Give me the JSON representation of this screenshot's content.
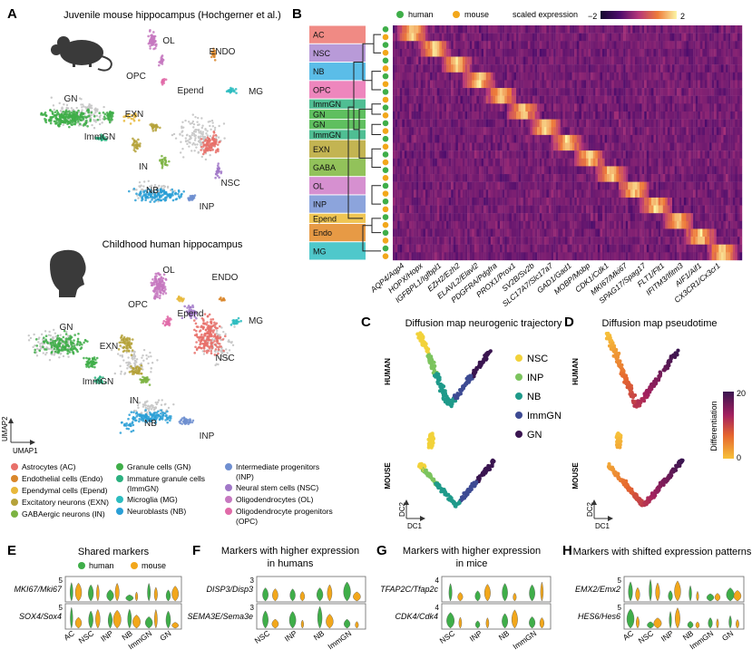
{
  "panels": {
    "A": {
      "label": "A",
      "title_mouse": "Juvenile mouse hippocampus (Hochgerner et al.)",
      "title_human": "Childhood human hippocampus",
      "axis_x": "UMAP1",
      "axis_y": "UMAP2",
      "mouse_cluster_labels": [
        "OL",
        "ENDO",
        "OPC",
        "Epend",
        "MG",
        "GN",
        "EXN",
        "ImmGN",
        "IN",
        "NSC",
        "NB",
        "INP"
      ],
      "human_cluster_labels": [
        "OL",
        "ENDO",
        "OPC",
        "Epend",
        "MG",
        "GN",
        "EXN",
        "ImmGN",
        "NSC",
        "IN",
        "NB",
        "INP"
      ],
      "legend": [
        {
          "label": "Astrocytes (AC)",
          "color": "#e8706a"
        },
        {
          "label": "Endothelial cells (Endo)",
          "color": "#d9862a"
        },
        {
          "label": "Ependymal cells (Epend)",
          "color": "#e8b83a"
        },
        {
          "label": "Excitatory neurons (EXN)",
          "color": "#b5a23a"
        },
        {
          "label": "GABAergic neurons (IN)",
          "color": "#7cb342"
        },
        {
          "label": "Granule cells (GN)",
          "color": "#3fae49"
        },
        {
          "label": "Immature granule cells (ImmGN)",
          "color": "#2bb07f"
        },
        {
          "label": "Microglia (MG)",
          "color": "#2cbcc0"
        },
        {
          "label": "Neuroblasts (NB)",
          "color": "#2a9fd6"
        },
        {
          "label": "Intermediate progenitors (INP)",
          "color": "#6f8fd0"
        },
        {
          "label": "Neural stem cells (NSC)",
          "color": "#a178c8"
        },
        {
          "label": "Oligodendrocytes (OL)",
          "color": "#c678c0"
        },
        {
          "label": "Oligodendrocyte progenitors (OPC)",
          "color": "#e06aa8"
        }
      ]
    },
    "B": {
      "label": "B",
      "legend_human": "human",
      "legend_mouse": "mouse",
      "legend_scale": "scaled expression",
      "scale_min": "−2",
      "scale_max": "2",
      "clusters": [
        {
          "label": "AC",
          "color": "#f08a84"
        },
        {
          "label": "NSC",
          "color": "#b89ad8"
        },
        {
          "label": "NB",
          "color": "#5bbde8"
        },
        {
          "label": "OPC",
          "color": "#ee86bd"
        },
        {
          "label": "ImmGN",
          "color": "#4fbe93"
        },
        {
          "label": "GN",
          "color": "#5fbf5f"
        },
        {
          "label": "GN",
          "color": "#5fbf5f"
        },
        {
          "label": "ImmGN",
          "color": "#4fbe93"
        },
        {
          "label": "EXN",
          "color": "#c3b452"
        },
        {
          "label": "GABA",
          "color": "#92c25a"
        },
        {
          "label": "OL",
          "color": "#d690d0"
        },
        {
          "label": "INP",
          "color": "#8ca4dc"
        },
        {
          "label": "Epend",
          "color": "#efc553"
        },
        {
          "label": "Endo",
          "color": "#e79a45"
        },
        {
          "label": "MG",
          "color": "#4fc8cb"
        }
      ],
      "genes": [
        "AQP4/Aqp4",
        "HOPX/Hopx",
        "IGFBPL1/Igfbpl1",
        "EZH2/Ezh2",
        "ELAVL2/Elavl2",
        "PDGFRA/Pdgfra",
        "PROX1/Prox1",
        "SV2B/Sv2b",
        "SLC17A7/Slc17a7",
        "GAD1/Gad1",
        "MOBP/Mobp",
        "CDK1/Cdk1",
        "MKI67/Mki67",
        "SPAG17/Spag17",
        "FLT1/Flt1",
        "IFITM3/Ifitm3",
        "AIF1/Aif1",
        "CX3CR1/Cx3cr1"
      ]
    },
    "C": {
      "label": "C",
      "title": "Diffusion map neurogenic trajectory",
      "row_human": "HUMAN",
      "row_mouse": "MOUSE",
      "axis_x": "DC1",
      "axis_y": "DC2",
      "legend": [
        {
          "label": "NSC",
          "color": "#f2d23a"
        },
        {
          "label": "INP",
          "color": "#7cc45e"
        },
        {
          "label": "NB",
          "color": "#1f9a8a"
        },
        {
          "label": "ImmGN",
          "color": "#3d4a93"
        },
        {
          "label": "GN",
          "color": "#3a1550"
        }
      ]
    },
    "D": {
      "label": "D",
      "title": "Diffusion map pseudotime",
      "row_human": "HUMAN",
      "row_mouse": "MOUSE",
      "axis_x": "DC1",
      "axis_y": "DC2",
      "colorbar_label": "Differentiation",
      "colorbar_max": "20",
      "colorbar_min": "0"
    },
    "E": {
      "label": "E",
      "title": "Shared markers",
      "legend_human": "human",
      "legend_mouse": "mouse",
      "genes": [
        "MKI67/Mki67",
        "SOX4/Sox4"
      ],
      "ymax": "5",
      "categories": [
        "AC",
        "NSC",
        "INP",
        "NB",
        "ImmGN",
        "GN"
      ]
    },
    "F": {
      "label": "F",
      "title_line1": "Markers with higher expression",
      "title_line2": "in humans",
      "genes": [
        "DISP3/Disp3",
        "SEMA3E/Sema3e"
      ],
      "ymax": "3",
      "categories": [
        "NSC",
        "INP",
        "NB",
        "ImmGN"
      ]
    },
    "G": {
      "label": "G",
      "title_line1": "Markers with higher expression",
      "title_line2": "in mice",
      "genes": [
        "TFAP2C/Tfap2c",
        "CDK4/Cdk4"
      ],
      "ymax": "4",
      "categories": [
        "NSC",
        "INP",
        "NB",
        "ImmGN"
      ]
    },
    "H": {
      "label": "H",
      "title": "Markers with shifted expression patterns",
      "genes": [
        "EMX2/Emx2",
        "HES6/Hes6"
      ],
      "ymax": "5",
      "categories": [
        "AC",
        "NSC",
        "INP",
        "NB",
        "ImmGN",
        "GN"
      ]
    }
  },
  "colors": {
    "human": "#3fae49",
    "mouse": "#f2a71b"
  }
}
